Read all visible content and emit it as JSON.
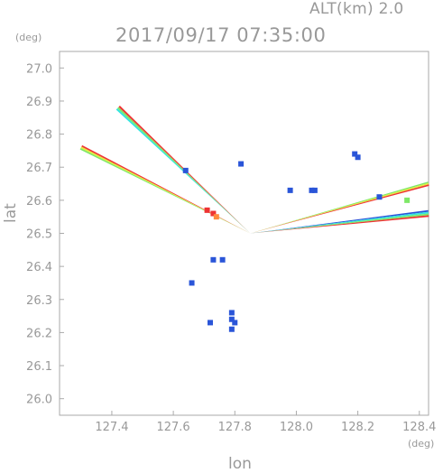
{
  "header": {
    "altitude": "ALT(km)  2.0",
    "title": "2017/09/17  07:35:00"
  },
  "chart_data": {
    "type": "scatter",
    "title": "2017/09/17  07:35:00",
    "subtitle": "ALT(km)  2.0",
    "xlabel": "lon",
    "ylabel": "lat",
    "x_unit": "(deg)",
    "y_unit": "(deg)",
    "xlim": [
      127.23,
      128.43
    ],
    "ylim": [
      25.95,
      27.05
    ],
    "x_ticks": [
      "127.4",
      "127.6",
      "127.8",
      "128.0",
      "128.2",
      "128.4"
    ],
    "y_ticks": [
      "27.0",
      "26.9",
      "26.8",
      "26.7",
      "26.6",
      "26.5",
      "26.4",
      "26.3",
      "26.2",
      "26.1",
      "26.0"
    ],
    "colors": {
      "axis": "#aaaaaa",
      "text": "#999999",
      "blue": "#2a55d8",
      "cyan": "#33e4e0",
      "green": "#7ee867",
      "yellow": "#e6ea3c",
      "orange": "#ff8a3d",
      "red": "#ee3333"
    },
    "radar_center": [
      127.85,
      26.5
    ],
    "spokes": [
      {
        "name": "nw-spoke-upper",
        "tip": [
          127.42,
          26.88
        ],
        "tip_width_deg": 0.018,
        "bands": [
          "cyan",
          "green",
          "red"
        ]
      },
      {
        "name": "nw-spoke-lower",
        "tip": [
          127.3,
          26.76
        ],
        "tip_width_deg": 0.016,
        "bands": [
          "green",
          "yellow",
          "red"
        ]
      },
      {
        "name": "ne-spoke-upper",
        "tip": [
          128.43,
          26.65
        ],
        "tip_width_deg": 0.014,
        "bands": [
          "green",
          "yellow",
          "red"
        ]
      },
      {
        "name": "ne-spoke-lower",
        "tip": [
          128.43,
          26.56
        ],
        "tip_width_deg": 0.022,
        "bands": [
          "blue",
          "cyan",
          "green",
          "red"
        ]
      }
    ],
    "echoes": [
      {
        "lon": 127.73,
        "lat": 26.56,
        "color": "red"
      },
      {
        "lon": 127.71,
        "lat": 26.57,
        "color": "red"
      },
      {
        "lon": 127.74,
        "lat": 26.55,
        "color": "orange"
      },
      {
        "lon": 127.64,
        "lat": 26.69,
        "color": "blue"
      },
      {
        "lon": 127.82,
        "lat": 26.71,
        "color": "blue"
      },
      {
        "lon": 128.19,
        "lat": 26.74,
        "color": "blue"
      },
      {
        "lon": 128.2,
        "lat": 26.73,
        "color": "blue"
      },
      {
        "lon": 128.05,
        "lat": 26.63,
        "color": "blue"
      },
      {
        "lon": 128.06,
        "lat": 26.63,
        "color": "blue"
      },
      {
        "lon": 127.98,
        "lat": 26.63,
        "color": "blue"
      },
      {
        "lon": 128.27,
        "lat": 26.61,
        "color": "blue"
      },
      {
        "lon": 127.73,
        "lat": 26.42,
        "color": "blue"
      },
      {
        "lon": 127.76,
        "lat": 26.42,
        "color": "blue"
      },
      {
        "lon": 127.66,
        "lat": 26.35,
        "color": "blue"
      },
      {
        "lon": 127.79,
        "lat": 26.26,
        "color": "blue"
      },
      {
        "lon": 127.79,
        "lat": 26.24,
        "color": "blue"
      },
      {
        "lon": 127.8,
        "lat": 26.23,
        "color": "blue"
      },
      {
        "lon": 127.72,
        "lat": 26.23,
        "color": "blue"
      },
      {
        "lon": 127.79,
        "lat": 26.21,
        "color": "blue"
      },
      {
        "lon": 128.36,
        "lat": 26.6,
        "color": "green"
      }
    ]
  }
}
